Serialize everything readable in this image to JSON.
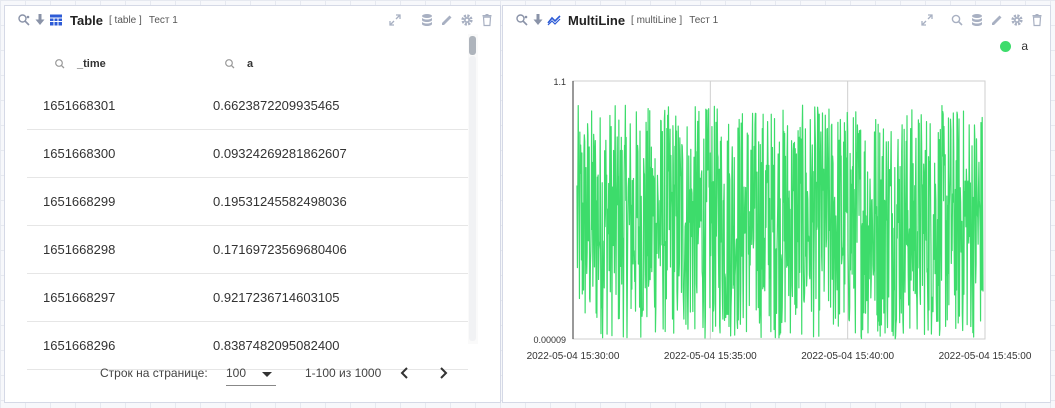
{
  "table_panel": {
    "title": "Table",
    "type": "[ table ]",
    "tab": "Тест 1",
    "columns": [
      "_time",
      "a"
    ],
    "rows": [
      [
        "1651668301",
        "0.6623872209935465"
      ],
      [
        "1651668300",
        "0.09324269281862607"
      ],
      [
        "1651668299",
        "0.19531245582498036"
      ],
      [
        "1651668298",
        "0.17169723569680406"
      ],
      [
        "1651668297",
        "0.9217236714603105"
      ],
      [
        "1651668296",
        "0.8387482095082400"
      ]
    ],
    "pager": {
      "rows_per_page_label": "Строк на странице:",
      "rows_per_page_value": "100",
      "range_text": "1-100 из 1000"
    },
    "icons": {
      "left": [
        "search-settings-icon",
        "download-icon",
        "table-icon"
      ],
      "right": [
        "expand-icon",
        "database-icon",
        "edit-icon",
        "settings-icon",
        "delete-icon"
      ]
    }
  },
  "chart_panel": {
    "title": "MultiLine",
    "type": "[ multiLine ]",
    "tab": "Тест 1",
    "legend": "a",
    "icons": {
      "left": [
        "search-settings-icon",
        "download-icon",
        "multiline-icon"
      ],
      "right": [
        "expand-icon",
        "zoom-icon",
        "database-icon",
        "edit-icon",
        "settings-icon",
        "delete-icon"
      ]
    },
    "line_color": "#3ddc6b"
  },
  "chart_data": {
    "type": "line",
    "series": [
      {
        "name": "a",
        "color": "#3ddc6b",
        "sample_count": 1000,
        "y_range": [
          9e-05,
          0.999
        ]
      }
    ],
    "ylim": [
      9e-05,
      1.1
    ],
    "y_ticks": [
      "1.1",
      "0.00009"
    ],
    "x_ticks": [
      "2022-05-04 15:30:00",
      "2022-05-04 15:35:00",
      "2022-05-04 15:40:00",
      "2022-05-04 15:45:00"
    ],
    "grid": true,
    "legend_position": "top-right"
  }
}
